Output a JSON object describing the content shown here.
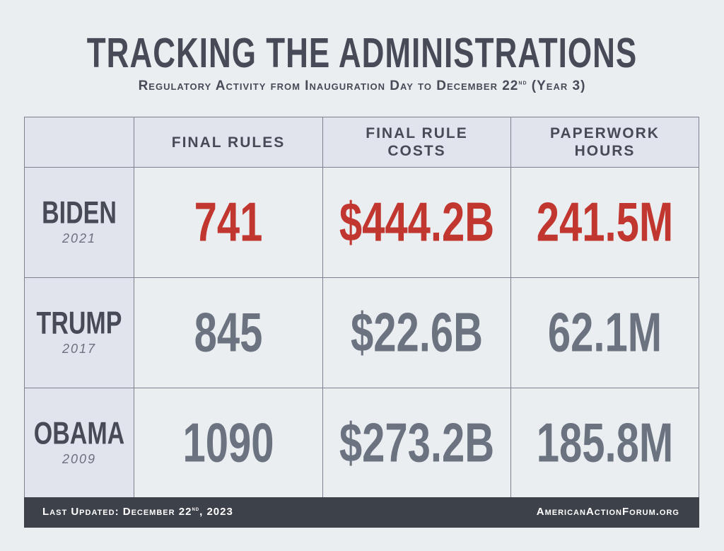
{
  "title": "TRACKING THE ADMINISTRATIONS",
  "subtitle": {
    "main": "Regulatory Activity from Inauguration Day to December 22",
    "sup": "nd",
    "tail": " (Year 3)"
  },
  "chart_data": {
    "type": "table",
    "columns": [
      "FINAL RULES",
      "FINAL RULE COSTS",
      "PAPERWORK HOURS"
    ],
    "rows": [
      {
        "name": "BIDEN",
        "year": "2021",
        "values": [
          "741",
          "$444.2B",
          "241.5M"
        ],
        "highlight": true
      },
      {
        "name": "TRUMP",
        "year": "2017",
        "values": [
          "845",
          "$22.6B",
          "62.1M"
        ],
        "highlight": false
      },
      {
        "name": "OBAMA",
        "year": "2009",
        "values": [
          "1090",
          "$273.2B",
          "185.8M"
        ],
        "highlight": false
      }
    ]
  },
  "footer": {
    "updated": "Last Updated: December 22",
    "updated_sup": "nd",
    "updated_tail": ", 2023",
    "site": "AmericanActionForum.org"
  },
  "colors": {
    "highlight": "#c1362f",
    "muted": "#6b7280",
    "dark": "#474b57",
    "footer_bg": "#3d414a"
  }
}
